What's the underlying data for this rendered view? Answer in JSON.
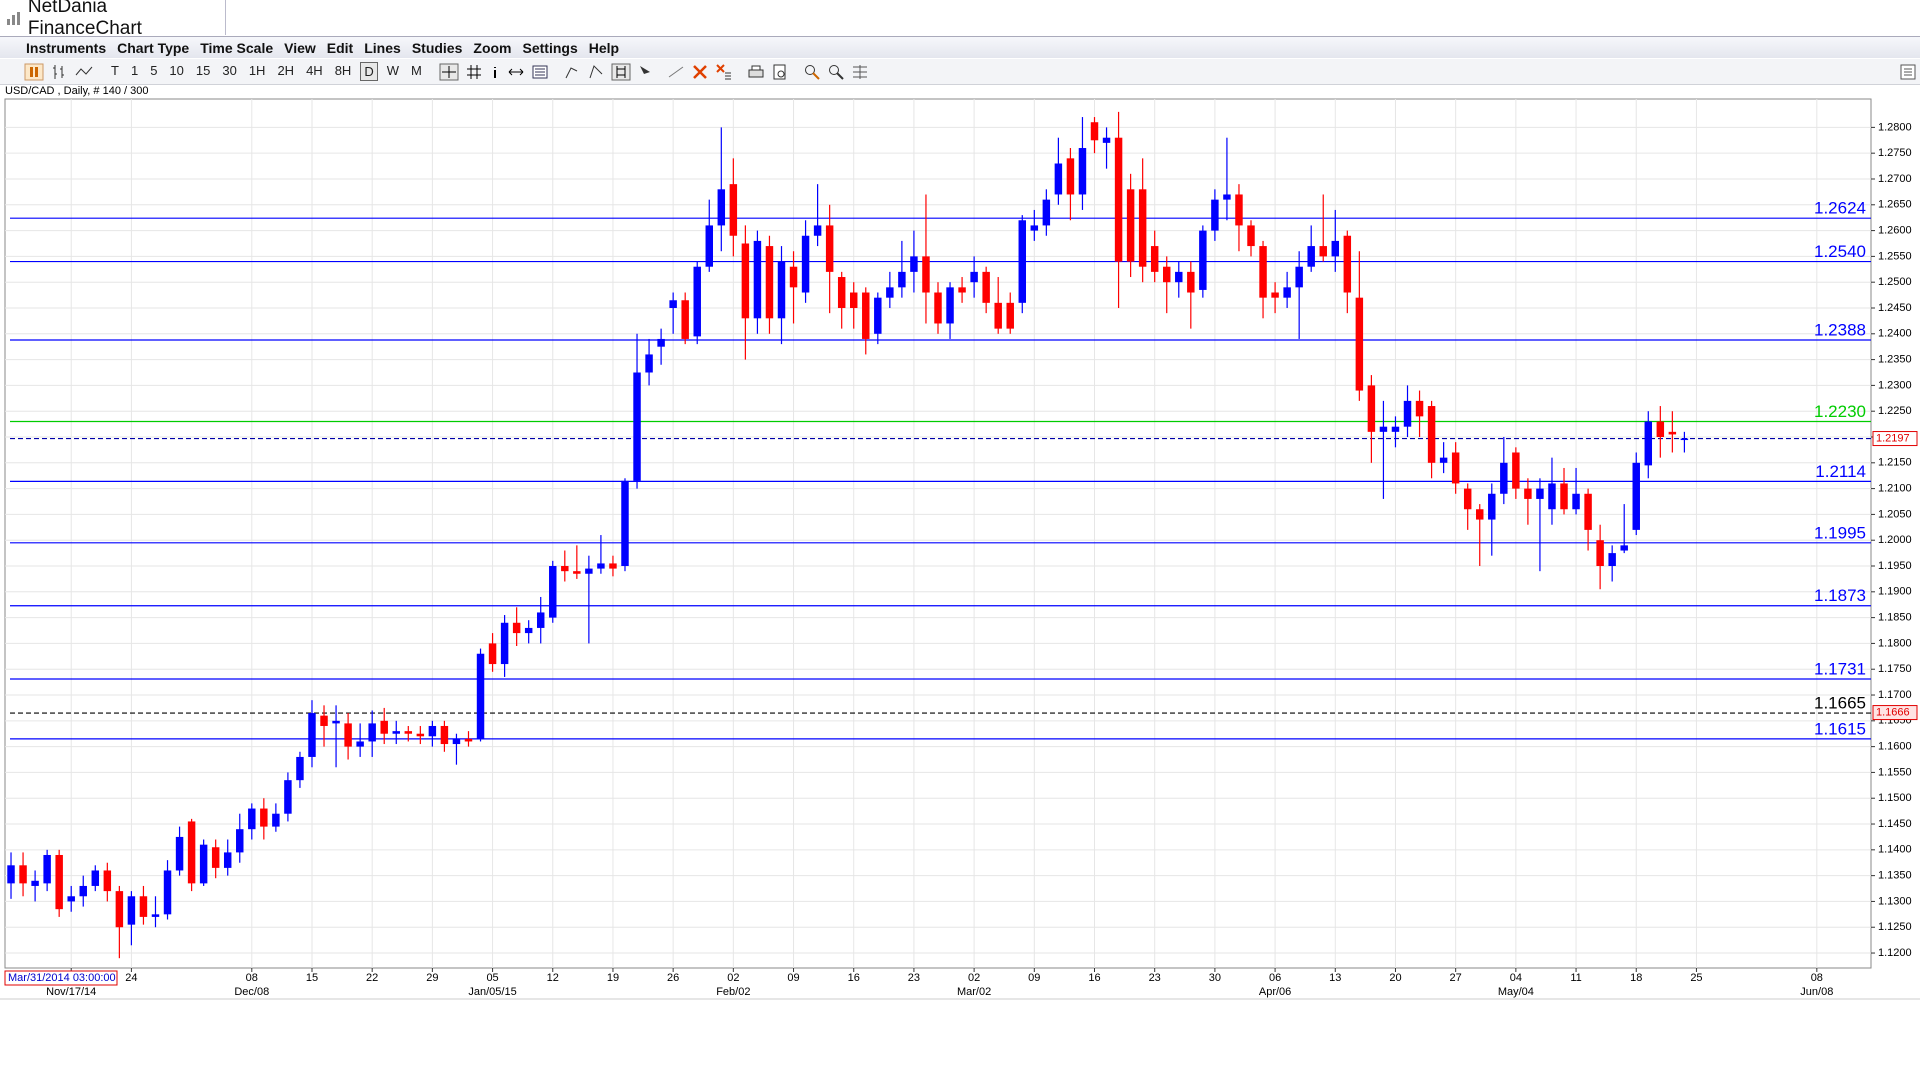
{
  "window": {
    "title": "NetDania FinanceChart"
  },
  "menu": [
    "Instruments",
    "Chart Type",
    "Time Scale",
    "View",
    "Edit",
    "Lines",
    "Studies",
    "Zoom",
    "Settings",
    "Help"
  ],
  "timeframes": [
    "T",
    "1",
    "5",
    "10",
    "15",
    "30",
    "1H",
    "2H",
    "4H",
    "8H",
    "D",
    "W",
    "M"
  ],
  "selected_timeframe": "D",
  "chart_data": {
    "type": "candlestick",
    "title": "USD/CAD , Daily, # 140 / 300",
    "up_color": "#0000ff",
    "down_color": "#ff0000",
    "grid": true,
    "categories": [
      null,
      null,
      null,
      null,
      null,
      null,
      null,
      null,
      null,
      null,
      "24",
      null,
      null,
      null,
      null,
      null,
      null,
      null,
      null,
      null,
      "08",
      null,
      null,
      null,
      null,
      "15",
      null,
      null,
      null,
      null,
      "22",
      null,
      null,
      null,
      null,
      "29",
      null,
      null,
      null,
      null,
      "05",
      null,
      null,
      null,
      null,
      "12",
      null,
      null,
      null,
      null,
      "19",
      null,
      null,
      null,
      null,
      "26",
      null,
      null,
      null,
      null,
      "02",
      null,
      null,
      null,
      null,
      "09",
      null,
      null,
      null,
      null,
      "16",
      null,
      null,
      null,
      null,
      "23",
      null,
      null,
      null,
      null,
      "02",
      null,
      null,
      null,
      null,
      "09",
      null,
      null,
      null,
      null,
      "16",
      null,
      null,
      null,
      null,
      "23",
      null,
      null,
      null,
      null,
      "30",
      null,
      null,
      null,
      null,
      "06",
      null,
      null,
      null,
      null,
      "13",
      null,
      null,
      null,
      null,
      "20",
      null,
      null,
      null,
      null,
      "27",
      null,
      null,
      null,
      null,
      "04",
      null,
      null,
      null,
      null,
      "11",
      null,
      null,
      null,
      null,
      "18",
      null,
      null,
      null,
      null,
      "25",
      null,
      null,
      null,
      null,
      null,
      null,
      null,
      null,
      null,
      "08",
      null,
      null,
      null,
      null
    ],
    "category_months": [
      null,
      null,
      null,
      null,
      null,
      "Nov/17/14",
      null,
      null,
      null,
      null,
      null,
      null,
      null,
      null,
      null,
      null,
      null,
      null,
      null,
      null,
      "Dec/08",
      null,
      null,
      null,
      null,
      null,
      null,
      null,
      null,
      null,
      null,
      null,
      null,
      null,
      null,
      null,
      null,
      null,
      null,
      null,
      "Jan/05/15",
      null,
      null,
      null,
      null,
      null,
      null,
      null,
      null,
      null,
      null,
      null,
      null,
      null,
      null,
      null,
      null,
      null,
      null,
      null,
      "Feb/02",
      null,
      null,
      null,
      null,
      null,
      null,
      null,
      null,
      null,
      null,
      null,
      null,
      null,
      null,
      null,
      null,
      null,
      null,
      null,
      "Mar/02",
      null,
      null,
      null,
      null,
      null,
      null,
      null,
      null,
      null,
      null,
      null,
      null,
      null,
      null,
      null,
      null,
      null,
      null,
      null,
      null,
      null,
      null,
      null,
      null,
      "Apr/06",
      null,
      null,
      null,
      null,
      null,
      null,
      null,
      null,
      null,
      null,
      null,
      null,
      null,
      null,
      null,
      null,
      null,
      null,
      null,
      "May/04",
      null,
      null,
      null,
      null,
      null,
      null,
      null,
      null,
      null,
      null,
      null,
      null,
      null,
      null,
      null,
      null,
      null,
      null,
      null,
      null,
      null,
      null,
      null,
      null,
      "Jun/08",
      null,
      null,
      null,
      null
    ],
    "open": [
      1.1335,
      1.137,
      1.133,
      1.1335,
      1.139,
      1.13,
      1.131,
      1.133,
      1.136,
      1.132,
      1.1255,
      1.131,
      1.127,
      1.1275,
      1.136,
      1.1455,
      1.1335,
      1.1405,
      1.1365,
      1.1395,
      1.144,
      1.148,
      1.1445,
      1.147,
      1.1535,
      1.158,
      1.166,
      1.1645,
      1.1645,
      1.16,
      1.161,
      1.165,
      1.1625,
      1.163,
      1.1625,
      1.162,
      1.164,
      1.1605,
      1.1615,
      1.1615,
      1.18,
      1.176,
      1.184,
      1.182,
      1.183,
      1.185,
      1.195,
      1.194,
      1.1935,
      1.1945,
      1.1955,
      1.195,
      1.2115,
      1.2325,
      1.2375,
      1.245,
      1.2465,
      1.2395,
      1.253,
      1.261,
      1.269,
      1.2575,
      1.243,
      1.257,
      1.243,
      1.253,
      1.248,
      1.259,
      1.261,
      1.251,
      1.248,
      1.248,
      1.24,
      1.247,
      1.249,
      1.252,
      1.255,
      1.248,
      1.242,
      1.249,
      1.25,
      1.252,
      1.246,
      1.246,
      1.246,
      1.26,
      1.261,
      1.267,
      1.274,
      1.267,
      1.281,
      1.277,
      1.278,
      1.268,
      1.268,
      1.257,
      1.253,
      1.25,
      1.252,
      1.2485,
      1.26,
      1.266,
      1.267,
      1.261,
      1.257,
      1.248,
      1.247,
      1.249,
      1.253,
      1.257,
      1.255,
      1.259,
      1.247,
      1.23,
      1.221,
      1.221,
      1.222,
      1.227,
      1.226,
      1.215,
      1.217,
      1.21,
      1.206,
      1.204,
      1.209,
      1.217,
      1.21,
      1.208,
      1.206,
      1.211,
      1.206,
      1.209,
      1.2,
      1.195,
      1.198,
      1.202,
      1.2145,
      1.223,
      1.221,
      1.2195,
      null,
      null,
      null,
      null,
      null,
      null,
      null,
      null,
      null,
      null,
      null,
      null,
      null,
      null,
      null
    ],
    "high": [
      1.1395,
      1.1395,
      1.136,
      1.14,
      1.14,
      1.133,
      1.135,
      1.137,
      1.1375,
      1.133,
      1.132,
      1.133,
      1.131,
      1.138,
      1.1445,
      1.146,
      1.142,
      1.142,
      1.142,
      1.147,
      1.149,
      1.15,
      1.149,
      1.155,
      1.159,
      1.169,
      1.168,
      1.168,
      1.1665,
      1.1645,
      1.167,
      1.1675,
      1.165,
      1.164,
      1.164,
      1.165,
      1.165,
      1.1625,
      1.163,
      1.179,
      1.182,
      1.1855,
      1.187,
      1.1845,
      1.189,
      1.196,
      1.198,
      1.199,
      1.197,
      1.201,
      1.197,
      1.212,
      1.24,
      1.239,
      1.241,
      1.248,
      1.248,
      1.254,
      1.266,
      1.28,
      1.274,
      1.261,
      1.26,
      1.259,
      1.257,
      1.256,
      1.262,
      1.269,
      1.265,
      1.252,
      1.25,
      1.249,
      1.248,
      1.252,
      1.258,
      1.26,
      1.267,
      1.25,
      1.25,
      1.251,
      1.255,
      1.253,
      1.251,
      1.248,
      1.263,
      1.264,
      1.268,
      1.278,
      1.276,
      1.282,
      1.282,
      1.28,
      1.283,
      1.271,
      1.274,
      1.26,
      1.255,
      1.254,
      1.254,
      1.261,
      1.268,
      1.278,
      1.269,
      1.262,
      1.258,
      1.25,
      1.252,
      1.256,
      1.261,
      1.267,
      1.264,
      1.26,
      1.256,
      1.232,
      1.227,
      1.224,
      1.23,
      1.229,
      1.227,
      1.219,
      1.219,
      1.211,
      1.207,
      1.211,
      1.22,
      1.218,
      1.212,
      1.212,
      1.216,
      1.214,
      1.214,
      1.21,
      1.203,
      1.199,
      1.207,
      1.217,
      1.225,
      1.226,
      1.225,
      1.221,
      null,
      null,
      null,
      null,
      null,
      null,
      null,
      null,
      null,
      null,
      null,
      null,
      null,
      null,
      null
    ],
    "low": [
      1.1305,
      1.131,
      1.13,
      1.132,
      1.127,
      1.128,
      1.129,
      1.132,
      1.13,
      1.119,
      1.1215,
      1.1255,
      1.125,
      1.1265,
      1.135,
      1.132,
      1.133,
      1.1345,
      1.135,
      1.1375,
      1.142,
      1.142,
      1.1435,
      1.1455,
      1.152,
      1.156,
      1.16,
      1.156,
      1.1575,
      1.158,
      1.158,
      1.1605,
      1.1605,
      1.161,
      1.1605,
      1.16,
      1.159,
      1.1565,
      1.16,
      1.161,
      1.1745,
      1.1735,
      1.1795,
      1.18,
      1.18,
      1.184,
      1.192,
      1.1925,
      1.18,
      1.1935,
      1.193,
      1.194,
      1.21,
      1.23,
      1.234,
      1.24,
      1.238,
      1.238,
      1.252,
      1.256,
      1.255,
      1.235,
      1.24,
      1.24,
      1.238,
      1.242,
      1.246,
      1.257,
      1.244,
      1.241,
      1.241,
      1.236,
      1.238,
      1.245,
      1.247,
      1.248,
      1.242,
      1.24,
      1.239,
      1.246,
      1.247,
      1.244,
      1.24,
      1.24,
      1.244,
      1.258,
      1.259,
      1.265,
      1.262,
      1.264,
      1.275,
      1.272,
      1.245,
      1.251,
      1.25,
      1.25,
      1.244,
      1.247,
      1.241,
      1.247,
      1.258,
      1.262,
      1.256,
      1.255,
      1.243,
      1.244,
      1.245,
      1.239,
      1.252,
      1.254,
      1.252,
      1.244,
      1.227,
      1.215,
      1.208,
      1.218,
      1.22,
      1.22,
      1.212,
      1.213,
      1.209,
      1.202,
      1.195,
      1.197,
      1.207,
      1.208,
      1.203,
      1.194,
      1.203,
      1.205,
      1.205,
      1.198,
      1.1905,
      1.192,
      1.1975,
      1.201,
      1.212,
      1.216,
      1.217,
      1.217,
      null,
      null,
      null,
      null,
      null,
      null,
      null,
      null,
      null,
      null,
      null,
      null,
      null,
      null,
      null
    ],
    "close": [
      1.137,
      1.1335,
      1.134,
      1.139,
      1.1285,
      1.131,
      1.133,
      1.136,
      1.132,
      1.125,
      1.131,
      1.127,
      1.1275,
      1.136,
      1.1425,
      1.1335,
      1.141,
      1.1365,
      1.1395,
      1.144,
      1.148,
      1.1445,
      1.147,
      1.1535,
      1.158,
      1.1665,
      1.164,
      1.165,
      1.16,
      1.161,
      1.1645,
      1.1625,
      1.163,
      1.1625,
      1.162,
      1.164,
      1.1605,
      1.1615,
      1.161,
      1.178,
      1.176,
      1.184,
      1.182,
      1.183,
      1.186,
      1.195,
      1.194,
      1.1935,
      1.1945,
      1.1955,
      1.1945,
      1.2115,
      1.2325,
      1.236,
      1.239,
      1.2465,
      1.239,
      1.253,
      1.261,
      1.268,
      1.259,
      1.243,
      1.258,
      1.243,
      1.254,
      1.249,
      1.259,
      1.261,
      1.252,
      1.245,
      1.245,
      1.239,
      1.247,
      1.249,
      1.252,
      1.255,
      1.248,
      1.242,
      1.249,
      1.248,
      1.252,
      1.246,
      1.241,
      1.241,
      1.262,
      1.261,
      1.266,
      1.273,
      1.267,
      1.276,
      1.2775,
      1.278,
      1.254,
      1.254,
      1.253,
      1.252,
      1.25,
      1.252,
      1.248,
      1.26,
      1.266,
      1.267,
      1.261,
      1.257,
      1.247,
      1.247,
      1.249,
      1.253,
      1.257,
      1.255,
      1.258,
      1.248,
      1.229,
      1.221,
      1.222,
      1.222,
      1.227,
      1.224,
      1.215,
      1.216,
      1.211,
      1.206,
      1.204,
      1.209,
      1.215,
      1.21,
      1.208,
      1.21,
      1.211,
      1.206,
      1.209,
      1.202,
      1.195,
      1.1975,
      1.199,
      1.215,
      1.223,
      1.22,
      1.2205,
      1.2197,
      null,
      null,
      null,
      null,
      null,
      null,
      null,
      null,
      null,
      null,
      null,
      null,
      null,
      null,
      null
    ],
    "ylim": [
      1.1171,
      1.2855
    ],
    "yticks": [
      {
        "value": 1.12,
        "label": "1.1200"
      },
      {
        "value": 1.125,
        "label": "1.1250"
      },
      {
        "value": 1.13,
        "label": "1.1300"
      },
      {
        "value": 1.135,
        "label": "1.1350"
      },
      {
        "value": 1.14,
        "label": "1.1400"
      },
      {
        "value": 1.145,
        "label": "1.1450"
      },
      {
        "value": 1.15,
        "label": "1.1500"
      },
      {
        "value": 1.155,
        "label": "1.1550"
      },
      {
        "value": 1.16,
        "label": "1.1600"
      },
      {
        "value": 1.165,
        "label": "1.1650"
      },
      {
        "value": 1.17,
        "label": "1.1700"
      },
      {
        "value": 1.175,
        "label": "1.1750"
      },
      {
        "value": 1.18,
        "label": "1.1800"
      },
      {
        "value": 1.185,
        "label": "1.1850"
      },
      {
        "value": 1.19,
        "label": "1.1900"
      },
      {
        "value": 1.195,
        "label": "1.1950"
      },
      {
        "value": 1.2,
        "label": "1.2000"
      },
      {
        "value": 1.205,
        "label": "1.2050"
      },
      {
        "value": 1.21,
        "label": "1.2100"
      },
      {
        "value": 1.215,
        "label": "1.2150"
      },
      {
        "value": 1.22,
        "label": "1.2200"
      },
      {
        "value": 1.225,
        "label": "1.2250"
      },
      {
        "value": 1.23,
        "label": "1.2300"
      },
      {
        "value": 1.235,
        "label": "1.2350"
      },
      {
        "value": 1.24,
        "label": "1.2400"
      },
      {
        "value": 1.245,
        "label": "1.2450"
      },
      {
        "value": 1.25,
        "label": "1.2500"
      },
      {
        "value": 1.255,
        "label": "1.2550"
      },
      {
        "value": 1.26,
        "label": "1.2600"
      },
      {
        "value": 1.265,
        "label": "1.2650"
      },
      {
        "value": 1.27,
        "label": "1.2700"
      },
      {
        "value": 1.275,
        "label": "1.2750"
      },
      {
        "value": 1.28,
        "label": "1.2800"
      }
    ],
    "levels": [
      {
        "value": 1.2624,
        "label": "1.2624",
        "color": "#0000ff",
        "dashed": false
      },
      {
        "value": 1.254,
        "label": "1.2540",
        "color": "#0000ff",
        "dashed": false
      },
      {
        "value": 1.2388,
        "label": "1.2388",
        "color": "#0000ff",
        "dashed": false
      },
      {
        "value": 1.223,
        "label": "1.2230",
        "color": "#00cc00",
        "dashed": false
      },
      {
        "value": 1.2114,
        "label": "1.2114",
        "color": "#0000ff",
        "dashed": false
      },
      {
        "value": 1.1995,
        "label": "1.1995",
        "color": "#0000ff",
        "dashed": false
      },
      {
        "value": 1.1873,
        "label": "1.1873",
        "color": "#0000ff",
        "dashed": false
      },
      {
        "value": 1.1731,
        "label": "1.1731",
        "color": "#0000ff",
        "dashed": false
      },
      {
        "value": 1.1665,
        "label": "1.1665",
        "color": "#000000",
        "dashed": true
      },
      {
        "value": 1.1615,
        "label": "1.1615",
        "color": "#0000ff",
        "dashed": false
      }
    ],
    "last_price": {
      "value": 1.2197,
      "label": "1.2197",
      "color": "#0000aa"
    },
    "cursor_price": {
      "value": 1.1666,
      "label": "1.1666"
    },
    "cursor_time": "Mar/31/2014 03:00:00"
  }
}
